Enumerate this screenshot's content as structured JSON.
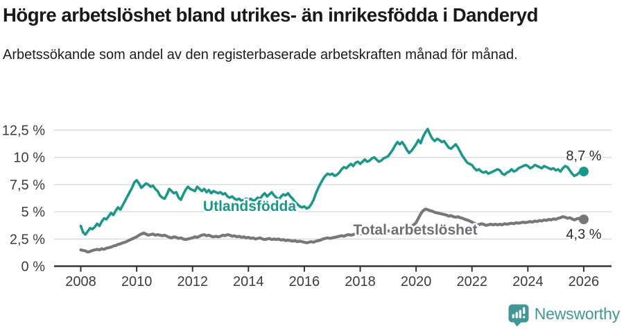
{
  "header": {
    "title": "Högre arbetslöshet bland utrikes- än inrikesfödda i Danderyd",
    "subtitle": "Arbetssökande som andel av den registerbaserade arbetskraften månad för månad."
  },
  "footer": {
    "brand": "Newsworthy",
    "brand_color": "#3f9897",
    "logo_icon": "speech-bubble-bar-chart-exclamation"
  },
  "chart_data": {
    "type": "line",
    "title": "Högre arbetslöshet bland utrikes- än inrikesfödda i Danderyd",
    "subtitle": "Arbetssökande som andel av den registerbaserade arbetskraften månad för månad.",
    "unit": "%",
    "frequency": "monthly",
    "x_start": "2008-01",
    "x_end": "2026-01",
    "grid": true,
    "legend_position": "inline-labels",
    "xticks": [
      "2008",
      "2010",
      "2012",
      "2014",
      "2016",
      "2018",
      "2020",
      "2022",
      "2024",
      "2026"
    ],
    "xtick_years": [
      2008,
      2010,
      2012,
      2014,
      2016,
      2018,
      2020,
      2022,
      2024,
      2026
    ],
    "ytick_labels": [
      "0 %",
      "2,5 %",
      "5 %",
      "7,5 %",
      "10 %",
      "12,5 %"
    ],
    "ytick_values": [
      0,
      2.5,
      5,
      7.5,
      10,
      12.5
    ],
    "ylim": [
      0,
      13.8
    ],
    "colors": {
      "utlandsfodda": "#17998a",
      "total": "#76767b",
      "grid": "#d9d9d9",
      "axis": "#333333"
    },
    "series": [
      {
        "name": "Utlandsfödda",
        "color": "#17998a",
        "end_label": "8,7 %",
        "end_value": 8.7,
        "values": [
          3.7,
          3.1,
          2.9,
          3.2,
          3.5,
          3.4,
          3.6,
          3.9,
          3.7,
          4.1,
          4.4,
          4.3,
          4.6,
          4.9,
          4.7,
          5.1,
          5.4,
          5.2,
          5.6,
          6.0,
          6.4,
          6.8,
          7.2,
          7.7,
          7.9,
          7.6,
          7.2,
          7.4,
          7.6,
          7.5,
          7.3,
          7.4,
          7.1,
          6.9,
          6.5,
          6.3,
          6.2,
          6.6,
          7.1,
          6.9,
          6.7,
          6.8,
          6.3,
          6.1,
          6.6,
          7.0,
          7.3,
          7.1,
          7.0,
          6.9,
          7.3,
          7.1,
          6.9,
          7.1,
          6.8,
          7.0,
          6.7,
          6.9,
          6.8,
          6.7,
          6.8,
          6.6,
          6.7,
          6.4,
          6.3,
          6.4,
          6.2,
          6.1,
          6.2,
          6.0,
          6.1,
          6.2,
          6.1,
          6.2,
          6.0,
          6.1,
          6.3,
          6.2,
          6.5,
          6.7,
          6.4,
          6.6,
          6.8,
          6.5,
          6.3,
          6.1,
          6.4,
          6.6,
          6.5,
          6.7,
          6.4,
          6.2,
          5.9,
          5.7,
          5.5,
          5.4,
          5.5,
          5.3,
          5.4,
          5.7,
          6.1,
          6.7,
          7.2,
          7.6,
          8.0,
          8.3,
          8.5,
          8.4,
          8.5,
          8.3,
          8.4,
          8.6,
          8.9,
          9.1,
          9.0,
          9.2,
          9.4,
          9.2,
          9.5,
          9.6,
          9.4,
          9.6,
          9.8,
          9.6,
          9.7,
          9.9,
          10.0,
          9.8,
          9.6,
          9.7,
          9.9,
          10.0,
          10.1,
          10.4,
          10.7,
          11.1,
          11.4,
          11.2,
          11.4,
          11.1,
          10.7,
          10.4,
          10.6,
          10.9,
          11.2,
          11.6,
          11.3,
          11.9,
          12.3,
          12.6,
          12.1,
          11.7,
          11.5,
          11.7,
          11.6,
          11.4,
          11.5,
          11.2,
          10.9,
          10.8,
          11.0,
          11.2,
          10.9,
          10.5,
          10.1,
          9.8,
          9.5,
          9.4,
          9.3,
          9.0,
          8.8,
          8.9,
          8.7,
          8.6,
          8.7,
          8.5,
          8.6,
          8.7,
          8.8,
          8.9,
          8.8,
          8.5,
          8.4,
          8.6,
          8.7,
          8.9,
          8.7,
          8.8,
          9.0,
          9.1,
          9.2,
          9.3,
          9.2,
          9.0,
          9.1,
          9.3,
          9.2,
          9.1,
          9.0,
          9.2,
          9.1,
          9.0,
          8.9,
          9.0,
          8.8,
          8.9,
          8.7,
          9.0,
          9.2,
          9.1,
          8.8,
          8.5,
          8.3,
          8.4,
          8.6,
          8.7,
          8.7
        ]
      },
      {
        "name": "Total arbetslöshet",
        "color": "#76767b",
        "end_label": "4,3 %",
        "end_value": 4.3,
        "values": [
          1.5,
          1.45,
          1.4,
          1.3,
          1.35,
          1.45,
          1.5,
          1.55,
          1.5,
          1.6,
          1.55,
          1.65,
          1.7,
          1.75,
          1.85,
          1.9,
          2.0,
          2.05,
          2.15,
          2.2,
          2.3,
          2.4,
          2.5,
          2.6,
          2.7,
          2.85,
          2.95,
          3.05,
          2.95,
          2.85,
          2.9,
          2.95,
          2.85,
          2.9,
          2.85,
          2.8,
          2.85,
          2.75,
          2.65,
          2.6,
          2.7,
          2.65,
          2.55,
          2.6,
          2.5,
          2.45,
          2.5,
          2.55,
          2.6,
          2.7,
          2.65,
          2.75,
          2.85,
          2.9,
          2.8,
          2.85,
          2.75,
          2.7,
          2.75,
          2.7,
          2.75,
          2.85,
          2.8,
          2.9,
          2.85,
          2.75,
          2.8,
          2.7,
          2.75,
          2.65,
          2.7,
          2.6,
          2.65,
          2.55,
          2.6,
          2.5,
          2.55,
          2.6,
          2.5,
          2.45,
          2.5,
          2.55,
          2.45,
          2.5,
          2.45,
          2.5,
          2.4,
          2.45,
          2.35,
          2.4,
          2.35,
          2.3,
          2.35,
          2.25,
          2.3,
          2.25,
          2.2,
          2.15,
          2.2,
          2.25,
          2.2,
          2.3,
          2.35,
          2.4,
          2.5,
          2.55,
          2.6,
          2.55,
          2.6,
          2.65,
          2.7,
          2.75,
          2.8,
          2.75,
          2.85,
          2.9,
          2.85,
          2.9,
          2.95,
          3.0,
          2.95,
          3.0,
          3.05,
          3.1,
          3.05,
          3.1,
          3.15,
          3.1,
          3.15,
          3.2,
          3.15,
          3.2,
          3.25,
          3.2,
          3.3,
          3.35,
          3.3,
          3.4,
          3.35,
          3.45,
          3.5,
          3.55,
          3.65,
          3.8,
          4.0,
          4.4,
          4.8,
          5.1,
          5.25,
          5.2,
          5.1,
          5.05,
          4.95,
          4.9,
          4.85,
          4.8,
          4.75,
          4.7,
          4.6,
          4.65,
          4.55,
          4.5,
          4.55,
          4.45,
          4.4,
          4.3,
          4.25,
          4.15,
          4.05,
          3.95,
          3.85,
          3.8,
          3.9,
          3.85,
          3.75,
          3.8,
          3.85,
          3.8,
          3.85,
          3.8,
          3.85,
          3.8,
          3.9,
          3.85,
          3.9,
          3.95,
          3.9,
          4.0,
          3.95,
          4.0,
          4.05,
          4.0,
          4.05,
          4.1,
          4.05,
          4.15,
          4.1,
          4.2,
          4.15,
          4.25,
          4.2,
          4.3,
          4.25,
          4.35,
          4.3,
          4.4,
          4.45,
          4.55,
          4.5,
          4.4,
          4.45,
          4.35,
          4.25,
          4.35,
          4.4,
          4.35,
          4.3
        ]
      }
    ]
  }
}
